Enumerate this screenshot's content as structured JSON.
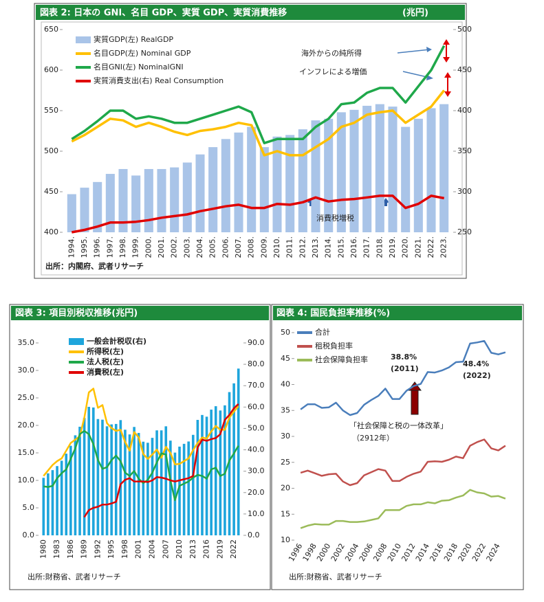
{
  "chart_data": [
    {
      "type": "combo",
      "title": "図表 2:  日本の GNI、名目 GDP、実質 GDP、実質消費推移",
      "unit": "(兆円)",
      "source": "出所：内閣府、武者リサーチ",
      "legend": "upper left",
      "annotations": [
        "海外からの純所得",
        "インフレによる増価",
        "消費税増税"
      ],
      "categories": [
        "1994.",
        "1995.",
        "1996.",
        "1997.",
        "1998.",
        "1999.",
        "2000.",
        "2001.",
        "2002.",
        "2003.",
        "2004.",
        "2005.",
        "2006.",
        "2007.",
        "2008.",
        "2009.",
        "2010.",
        "2011.",
        "2012.",
        "2013.",
        "2014.",
        "2015.",
        "2016.",
        "2017.",
        "2018.",
        "2019.",
        "2020.",
        "2021.",
        "2022.",
        "2023."
      ],
      "ylim": [
        400,
        650
      ],
      "yticks": [
        400,
        450,
        500,
        550,
        600,
        650
      ],
      "y2lim": [
        250,
        500
      ],
      "y2ticks": [
        250,
        300,
        350,
        400,
        450,
        500
      ],
      "series": [
        {
          "name": "実質GDP(左) RealGDP",
          "type": "bar",
          "color": "#a9c4e8",
          "values": [
            447,
            455,
            462,
            472,
            478,
            470,
            478,
            478,
            480,
            486,
            496,
            505,
            515,
            523,
            530,
            505,
            518,
            520,
            527,
            538,
            540,
            548,
            551,
            556,
            558,
            555,
            530,
            540,
            553,
            558
          ]
        },
        {
          "name": "名目GDP(左) Nominal GDP",
          "type": "line",
          "color": "#ffc000",
          "values": [
            512,
            520,
            530,
            540,
            538,
            530,
            535,
            530,
            524,
            520,
            525,
            527,
            530,
            535,
            532,
            495,
            500,
            495,
            495,
            505,
            515,
            530,
            535,
            545,
            548,
            550,
            535,
            545,
            555,
            575
          ]
        },
        {
          "name": "名目GNI(左) NominalGNI",
          "type": "line",
          "color": "#1fa84a",
          "values": [
            515,
            525,
            537,
            550,
            550,
            540,
            543,
            540,
            535,
            535,
            540,
            545,
            550,
            555,
            548,
            510,
            515,
            515,
            515,
            530,
            540,
            558,
            560,
            572,
            578,
            578,
            560,
            580,
            600,
            630
          ]
        },
        {
          "name": "実質消費支出(右) Real Consumption",
          "type": "line",
          "axis": "y2",
          "color": "#e00000",
          "values": [
            250,
            253,
            257,
            262,
            262,
            263,
            265,
            268,
            270,
            272,
            276,
            279,
            282,
            284,
            280,
            280,
            285,
            284,
            287,
            293,
            288,
            290,
            291,
            293,
            295,
            295,
            280,
            285,
            295,
            292
          ]
        }
      ]
    },
    {
      "type": "combo",
      "title": "図表 3: 項目別税収推移(兆円)",
      "source": "出所:財務省、武者リサーチ",
      "legend": "upper left",
      "categories": [
        "1980",
        null,
        null,
        "1983",
        null,
        null,
        "1986",
        null,
        null,
        "1989",
        null,
        null,
        "1992",
        null,
        null,
        "1995",
        null,
        null,
        "1998",
        null,
        null,
        "2001",
        null,
        null,
        "2004",
        null,
        null,
        "2007",
        null,
        null,
        "2010",
        null,
        null,
        "2013",
        null,
        null,
        "2016",
        null,
        null,
        "2019",
        null,
        null,
        "2022",
        null
      ],
      "ylim": [
        0,
        35
      ],
      "yticks": [
        {
          "value": 0,
          "label": "0.0"
        },
        {
          "value": 5,
          "label": "5.0"
        },
        {
          "value": 10,
          "label": "10.0"
        },
        {
          "value": 15,
          "label": "15.0"
        },
        {
          "value": 20,
          "label": "20.0"
        },
        {
          "value": 25,
          "label": "25.0"
        },
        {
          "value": 30,
          "label": "30.0"
        },
        {
          "value": 35,
          "label": "35.0"
        }
      ],
      "y2lim": [
        0,
        90
      ],
      "y2ticks": [
        {
          "value": 0,
          "label": "0.0"
        },
        {
          "value": 10,
          "label": "10.0"
        },
        {
          "value": 20,
          "label": "20.0"
        },
        {
          "value": 30,
          "label": "30.0"
        },
        {
          "value": 40,
          "label": "40.0"
        },
        {
          "value": 50,
          "label": "50.0"
        },
        {
          "value": 60,
          "label": "60.0"
        },
        {
          "value": 70,
          "label": "70.0"
        },
        {
          "value": 80,
          "label": "80.0"
        },
        {
          "value": 90,
          "label": "90.0"
        }
      ],
      "series": [
        {
          "name": "一般会計税収(右)",
          "type": "bar",
          "axis": "y2",
          "color": "#1ea5dc",
          "values": [
            26.9,
            29,
            30.5,
            32.4,
            34.9,
            38.2,
            41.9,
            46.8,
            50.8,
            54.9,
            60.1,
            59.8,
            54.4,
            54.1,
            51,
            51.9,
            52.1,
            53.9,
            49.4,
            47.2,
            50.7,
            47.9,
            43.8,
            43.3,
            45.6,
            49.1,
            49.1,
            51,
            44.3,
            38.7,
            41.5,
            42.8,
            43.9,
            47,
            54,
            56.3,
            55.5,
            58.8,
            60.4,
            58.4,
            60.8,
            67,
            71.1,
            78
          ]
        },
        {
          "name": "所得税(左)",
          "type": "line",
          "color": "#ffc000",
          "values": [
            10.8,
            11.8,
            12.8,
            13.5,
            14,
            15.4,
            16.8,
            17.4,
            18,
            21.4,
            26,
            26.7,
            23.2,
            23.7,
            20.4,
            19.5,
            19,
            19.2,
            17,
            15.4,
            18.8,
            17.8,
            14.8,
            13.9,
            14.7,
            15.6,
            14.1,
            16.1,
            15,
            12.9,
            13,
            13.5,
            14,
            15.5,
            16.8,
            17.8,
            17.6,
            18.9,
            19.9,
            19.2,
            19.2,
            21.4,
            22.5,
            23.5
          ]
        },
        {
          "name": "法人税(左)",
          "type": "line",
          "color": "#1fa84a",
          "values": [
            8.9,
            8.8,
            9,
            10.4,
            11.3,
            12,
            13.9,
            15.8,
            18.4,
            19,
            18.4,
            16.6,
            13.7,
            12.1,
            12.4,
            13.7,
            14.5,
            13.5,
            11.4,
            10.8,
            11.7,
            10.3,
            9.5,
            10.1,
            11.4,
            13.3,
            14.9,
            14.7,
            10,
            6.4,
            9,
            9.4,
            9.8,
            10.5,
            11,
            10.8,
            10.3,
            12,
            12.3,
            10.8,
            11.2,
            13.6,
            14.9,
            16.3
          ]
        },
        {
          "name": "消費税(左)",
          "type": "line",
          "color": "#e00000",
          "values": [
            null,
            null,
            null,
            null,
            null,
            null,
            null,
            null,
            null,
            3.3,
            4.6,
            5,
            5.2,
            5.6,
            5.6,
            5.8,
            6.1,
            9.3,
            10.1,
            10.4,
            9.8,
            9.8,
            9.8,
            9.7,
            10,
            10.6,
            10.5,
            10.3,
            10,
            9.8,
            10,
            10.2,
            10.4,
            10.8,
            16,
            17.4,
            17.2,
            17.5,
            17.7,
            18.4,
            21,
            21.9,
            23.1,
            23.9
          ]
        }
      ]
    },
    {
      "type": "line",
      "title": "図表 4: 国民負担率推移(%)",
      "source": "出所:財務省、武者リサーチ",
      "legend": "upper left",
      "annotations": [
        "38.8%",
        "(2011)",
        "48.4%",
        "(2022)",
        "「社会保障と税の一体改革」",
        "（2912年）"
      ],
      "categories": [
        "1996",
        null,
        "1998",
        null,
        "2000",
        null,
        "2002",
        null,
        "2004",
        null,
        "2006",
        null,
        "2008",
        null,
        "2010",
        null,
        "2012",
        null,
        "2014",
        null,
        "2016",
        null,
        "2018",
        null,
        "2020",
        null,
        "2022",
        null,
        "2024",
        null
      ],
      "ylim": [
        10,
        50
      ],
      "yticks": [
        10,
        15,
        20,
        25,
        30,
        35,
        40,
        45,
        50
      ],
      "series": [
        {
          "name": "合計",
          "type": "line",
          "color": "#4a7ebb",
          "values": [
            35.2,
            36.2,
            36.2,
            35.5,
            35.6,
            36.5,
            35,
            34.1,
            34.5,
            36.1,
            37,
            37.8,
            39.2,
            37.2,
            37.2,
            38.8,
            39.7,
            40.1,
            42.4,
            42.3,
            42.7,
            43.3,
            44.3,
            44.4,
            47.9,
            48.1,
            48.4,
            46.1,
            45.8,
            46.2
          ]
        },
        {
          "name": "租税負担率",
          "type": "line",
          "color": "#c0504d",
          "values": [
            23,
            23.4,
            22.9,
            22.4,
            22.7,
            22.8,
            21.3,
            20.6,
            21,
            22.5,
            23.1,
            23.7,
            23.4,
            21.4,
            21.4,
            22.2,
            22.8,
            23.2,
            25.1,
            25.2,
            25.1,
            25.5,
            26.1,
            25.8,
            28.2,
            28.9,
            29.4,
            27.7,
            27.3,
            28.2
          ]
        },
        {
          "name": "社会保障負担率",
          "type": "line",
          "color": "#9bbb59",
          "values": [
            12.3,
            12.8,
            13.1,
            13,
            13,
            13.7,
            13.7,
            13.5,
            13.5,
            13.6,
            13.9,
            14.2,
            15.8,
            15.8,
            15.8,
            16.6,
            16.9,
            16.9,
            17.3,
            17.1,
            17.6,
            17.7,
            18.2,
            18.6,
            19.7,
            19.2,
            19,
            18.4,
            18.5,
            18
          ]
        }
      ]
    }
  ]
}
